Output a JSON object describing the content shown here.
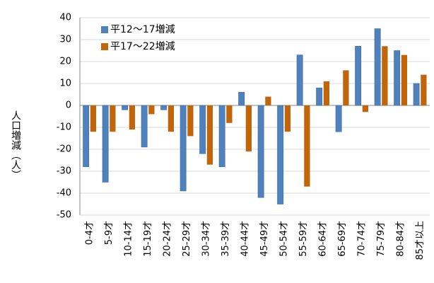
{
  "chart_data": {
    "type": "bar",
    "y_label": "人口増減（人）",
    "categories": [
      "0-4才",
      "5-9才",
      "10-14才",
      "15-19才",
      "20-24才",
      "25-29才",
      "30-34才",
      "35-39才",
      "40-44才",
      "45-49才",
      "50-54才",
      "55-59才",
      "60-64才",
      "65-69才",
      "70-74才",
      "75-79才",
      "80-84才",
      "85才以上"
    ],
    "series": [
      {
        "name": "平12～17増減",
        "color": "#4f81bd",
        "values": [
          -28,
          -35,
          -2,
          -19,
          -2,
          -39,
          -22,
          -28,
          6,
          -42,
          -45,
          23,
          8,
          -12,
          27,
          35,
          25,
          10
        ]
      },
      {
        "name": "平17～22増減",
        "color": "#c0650a",
        "values": [
          -12,
          -12,
          -11,
          -4,
          -12,
          -14,
          -27,
          -8,
          -21,
          4,
          -12,
          -37,
          11,
          16,
          -3,
          27,
          23,
          14
        ]
      }
    ],
    "ylim": [
      -50,
      40
    ],
    "yticks": [
      -50,
      -40,
      -30,
      -20,
      -10,
      0,
      10,
      20,
      30,
      40
    ],
    "grid": true,
    "legend": "top-left"
  }
}
